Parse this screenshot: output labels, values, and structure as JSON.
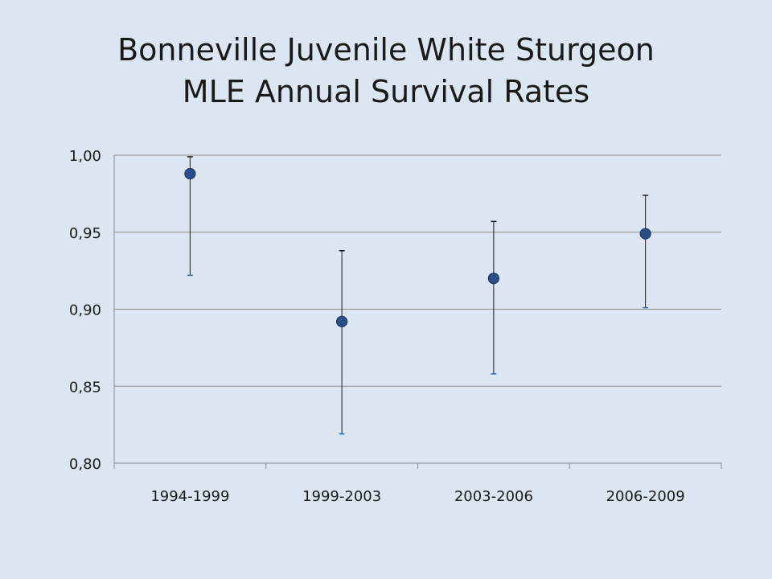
{
  "title_lines": [
    "Bonneville Juvenile White Sturgeon",
    "MLE Annual Survival Rates"
  ],
  "chart_data": {
    "type": "scatter",
    "title": "Bonneville Juvenile White Sturgeon MLE Annual Survival Rates",
    "xlabel": "",
    "ylabel": "",
    "categories": [
      "1994-1999",
      "1999-2003",
      "2003-2006",
      "2006-2009"
    ],
    "series": [
      {
        "values": [
          0.988,
          0.892,
          0.92,
          0.949
        ],
        "lower": [
          0.922,
          0.819,
          0.858,
          0.901
        ],
        "upper": [
          0.999,
          0.938,
          0.957,
          0.974
        ]
      }
    ],
    "ylim": [
      0.8,
      1.0
    ],
    "yticks": [
      1.0,
      0.95,
      0.9,
      0.85,
      0.8
    ],
    "ytick_labels": [
      "1,00",
      "0,95",
      "0,90",
      "0,85",
      "0,80"
    ],
    "grid": true,
    "legend": "none",
    "colors": {
      "marker": "#2b4f87",
      "marker_stroke": "#1c3661",
      "errorbar": "#1a1a1a",
      "grid": "#8c8c8c"
    }
  }
}
